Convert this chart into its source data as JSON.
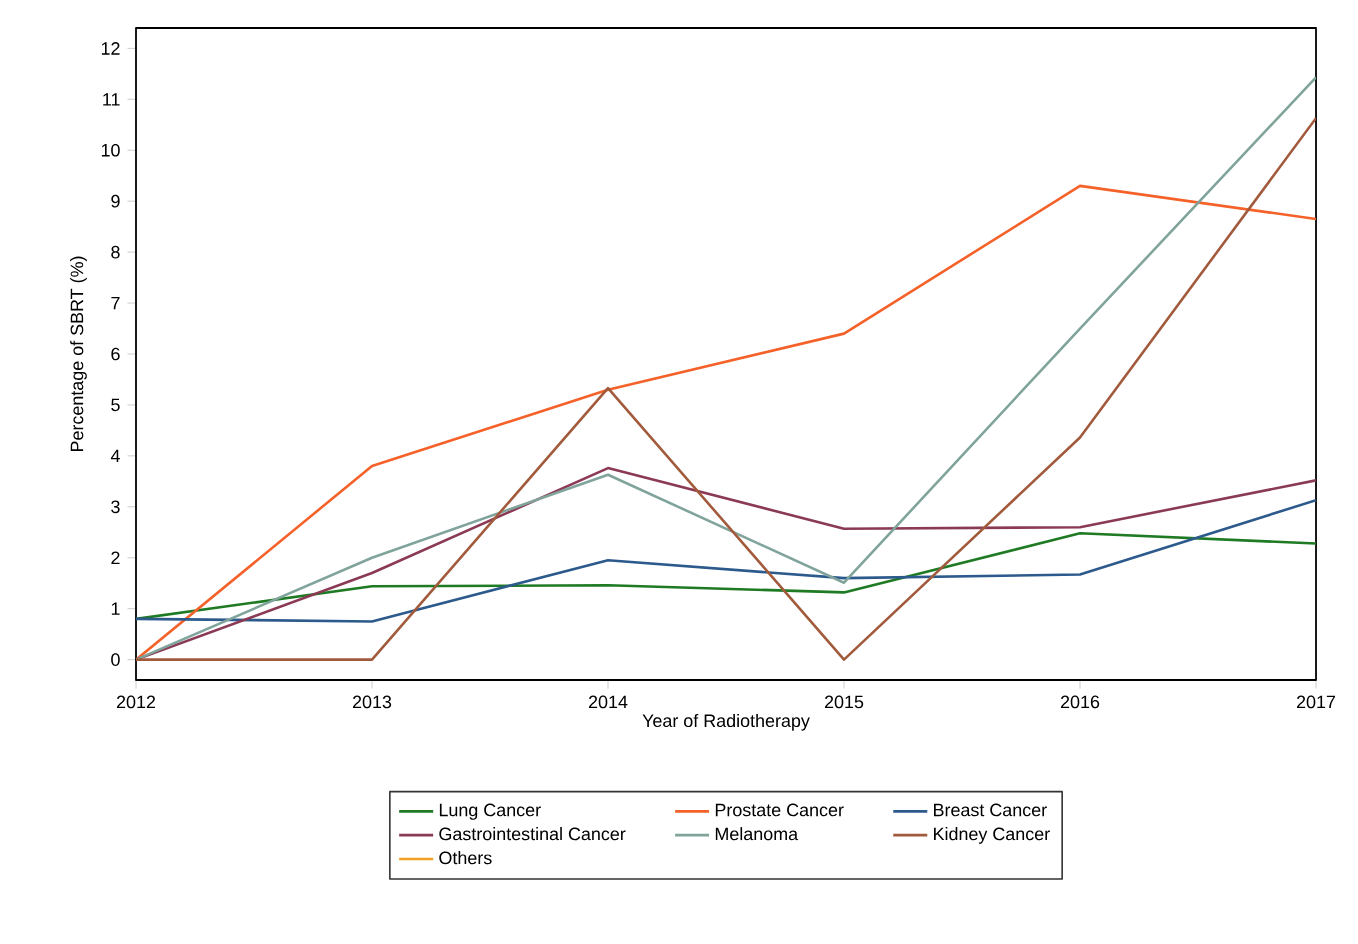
{
  "chart_data": {
    "type": "line",
    "xlabel": "Year of Radiotherapy",
    "ylabel": "Percentage of SBRT (%)",
    "x": [
      2012,
      2013,
      2014,
      2015,
      2016,
      2017
    ],
    "xlim": [
      2012,
      2017
    ],
    "xticks": [
      2012,
      2013,
      2014,
      2015,
      2016,
      2017
    ],
    "ylim": [
      -0.4,
      12.4
    ],
    "yticks": [
      0,
      1,
      2,
      3,
      4,
      5,
      6,
      7,
      8,
      9,
      10,
      11,
      12
    ],
    "grid": false,
    "legend": "bottom",
    "marker": "none",
    "line_style": "solid",
    "series": [
      {
        "name": "Lung Cancer",
        "color": "#1f7a24",
        "values": [
          0.8,
          1.44,
          1.46,
          1.32,
          2.48,
          2.28
        ]
      },
      {
        "name": "Prostate Cancer",
        "color": "#f4622a",
        "values": [
          0,
          3.8,
          5.3,
          6.4,
          9.3,
          8.65
        ]
      },
      {
        "name": "Breast Cancer",
        "color": "#2c5a8c",
        "values": [
          0.8,
          0.75,
          1.95,
          1.6,
          1.67,
          3.13
        ]
      },
      {
        "name": "Gastrointestinal Cancer",
        "color": "#8b3a55",
        "values": [
          0,
          1.7,
          3.76,
          2.57,
          2.6,
          3.52
        ]
      },
      {
        "name": "Melanoma",
        "color": "#80a49c",
        "values": [
          0,
          2.0,
          3.63,
          1.51,
          6.5,
          11.43
        ]
      },
      {
        "name": "Kidney Cancer",
        "color": "#a25a3c",
        "values": [
          0,
          0,
          5.33,
          0,
          4.36,
          10.63
        ]
      },
      {
        "name": "Others",
        "color": "#f0a024",
        "values": [
          null,
          null,
          null,
          null,
          null,
          null
        ]
      }
    ]
  }
}
